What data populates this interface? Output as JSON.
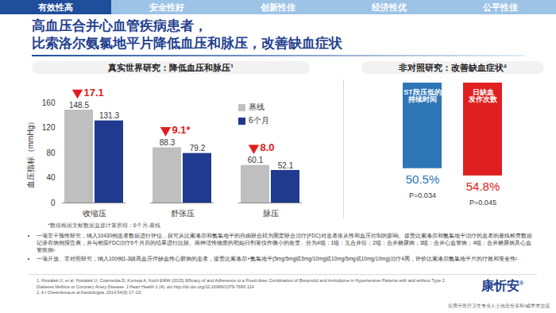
{
  "page": {
    "tabs": [
      "有效性高",
      "安全性好",
      "创新性佳",
      "经济性优",
      "公平性佳"
    ],
    "title_lines": [
      "高血压合并心血管疾病患者，",
      "比索洛尔氨氯地平片降低血压和脉压，改善缺血症状"
    ],
    "chart_note": "*数值根据文献数据直接计算所得：6个月-基线",
    "study_notes": [
      "一项非干预性研究，纳入10430例患者数据进行评估，探究从比索洛尔和氨氯地平的自由联合转为固定联合治疗(FDC)对患者依从性和血压控制的影响。接受比索洛尔和氨氯地平治疗的患者的基线检查数据记录在病例报告表，并与相应FDC治疗6个月后的结果进行比较。两种活性物质的初始日剂量仅作微小的改变。分为4组：1组：无合并症；2组：合并糖尿病；3组：合并心血管病；4组：合并糖尿病及心血管疾病¹",
      "一项开放、非对照研究，纳入100例1-3级高血压伴缺血性心脏病的患者，接受比索洛尔+氨氯地平(5mg/5mg或5mg/10mg或10mg/5mg或10mg/10mg)治疗4周，评价比索洛尔氨氯地平片的疗效和安全性²"
    ],
    "references": [
      "1. Hostalek U, et al. Hostalek U, Czarnecka D, Kurzeja A, Koch EMW (2015) Efficacy of and Adherence to a Fixed-dose Combination of Bisoprolol and Amlodipine in Hypertensive Patients with and without Type 2 Diabetes Mellitus or Coronary Artery Disease. J Heart Health 1 (4): doi http://dx.doi.org/10.16966/2379-769X.114",
      "2. A I Chesnikova,et al.Kardiologiia. 2014;54(9):17–23."
    ],
    "logo": "康忻安",
    "logo_mark": "®",
    "disclaimer": "仅用于医疗卫生专业人士信息分享和/或学术交流"
  },
  "chart_data": [
    {
      "type": "bar",
      "title": "真实世界研究：降低血压和脉压¹",
      "categories": [
        "收缩压",
        "舒张压",
        "脉压"
      ],
      "series": [
        {
          "name": "基线",
          "color": "#BFBFBF",
          "values": [
            148.5,
            88.3,
            60.1
          ]
        },
        {
          "name": "6个月",
          "color": "#1F3A8F",
          "values": [
            131.3,
            79.2,
            52.1
          ]
        }
      ],
      "ylabel": "血压指标（mmHg）",
      "ylim": [
        0,
        160
      ],
      "yticks": [
        0,
        40,
        80,
        120,
        160
      ],
      "data_labels": true,
      "legend": "top-right",
      "annotations": [
        {
          "category": "收缩压",
          "text": "17.1",
          "color": "#E02020"
        },
        {
          "category": "舒张压",
          "text": "9.1*",
          "color": "#E02020"
        },
        {
          "category": "脉压",
          "text": "8.0",
          "color": "#E02020"
        }
      ]
    },
    {
      "type": "bar",
      "title": "非对照研究：改善缺血症状²",
      "categories": [
        "ST段压低的\n持续时间",
        "日缺血\n发作次数"
      ],
      "values": [
        50.5,
        54.8
      ],
      "value_labels": [
        "50.5%",
        "54.8%"
      ],
      "colors": [
        "#2E75B6",
        "#E02020"
      ],
      "p_values": [
        "P=0.034",
        "P=0.045"
      ],
      "ylim": [
        0,
        60
      ],
      "tick_labels": false,
      "data_labels": true
    }
  ]
}
